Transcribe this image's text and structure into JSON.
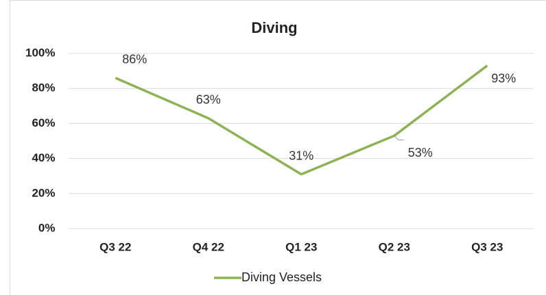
{
  "chart_data": {
    "type": "line",
    "title": "Diving",
    "categories": [
      "Q3 22",
      "Q4 22",
      "Q1 23",
      "Q2 23",
      "Q3 23"
    ],
    "series": [
      {
        "name": "Diving Vessels",
        "color": "#8db253",
        "values": [
          86,
          63,
          31,
          53,
          93
        ],
        "value_labels": [
          "86%",
          "63%",
          "31%",
          "53%",
          "93%"
        ]
      }
    ],
    "ylim": [
      0,
      100
    ],
    "yticks": [
      {
        "value": 0,
        "label": "0%"
      },
      {
        "value": 20,
        "label": "20%"
      },
      {
        "value": 40,
        "label": "40%"
      },
      {
        "value": 60,
        "label": "60%"
      },
      {
        "value": 80,
        "label": "80%"
      },
      {
        "value": 100,
        "label": "100%"
      }
    ],
    "grid": true,
    "legend": "bottom"
  }
}
